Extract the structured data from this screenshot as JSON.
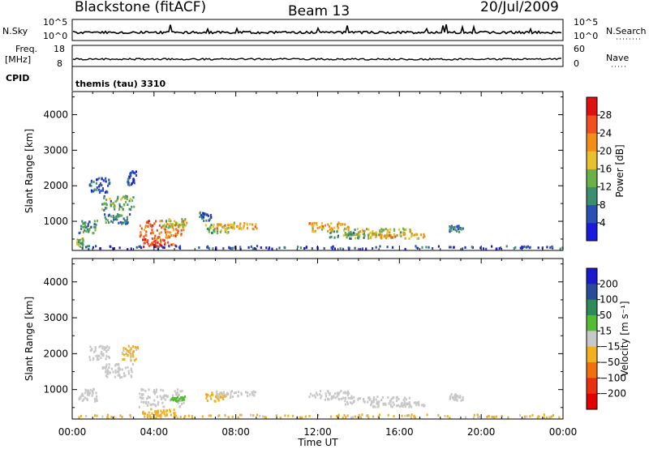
{
  "header": {
    "station": "Blackstone (fitACF)",
    "beam": "Beam 13",
    "date": "20/Jul/2009"
  },
  "top_panels": {
    "nsky_label": "N.Sky",
    "nsky_ticks": [
      "10^5",
      "10^0"
    ],
    "nsearch_label": "N.Search",
    "nsearch_ticks": [
      "10^5",
      "10^0"
    ],
    "freq_label": "Freq.",
    "freq_unit": "[MHz]",
    "freq_ticks": [
      "18",
      "8"
    ],
    "nave_label": "Nave",
    "nave_ticks": [
      "60",
      "0"
    ],
    "cpid_label": "CPID",
    "cpid_value": "themis (tau) 3310"
  },
  "colors": {
    "power_scale": [
      "#1a1adf",
      "#2a4fb5",
      "#3b8f70",
      "#6cb04a",
      "#e8c030",
      "#f09018",
      "#f05020",
      "#e01010"
    ],
    "velocity_scale": [
      "#1a1acc",
      "#2a4a9a",
      "#2f8a5a",
      "#55bb33",
      "#c8c8c8",
      "#f0b020",
      "#f07010",
      "#e83010",
      "#e00000"
    ]
  },
  "chart_data": [
    {
      "type": "heatmap",
      "name": "power",
      "ylabel": "Slant Range [km]",
      "xlabel": "",
      "yticks": [
        "1000",
        "2000",
        "3000",
        "4000"
      ],
      "yticks_values": [
        1000,
        2000,
        3000,
        4000
      ],
      "ylim": [
        180,
        4650
      ],
      "xticks": [
        "00:00",
        "04:00",
        "08:00",
        "12:00",
        "16:00",
        "20:00",
        "00:00"
      ],
      "xlim_hours": [
        0,
        24
      ],
      "colorbar_label": "Power [dB]",
      "colorbar_ticks": [
        "4",
        "8",
        "12",
        "16",
        "20",
        "24",
        "28"
      ],
      "colorbar_values": [
        4,
        8,
        12,
        16,
        20,
        24,
        28
      ],
      "colorbar_range": [
        0,
        32
      ],
      "regions": [
        {
          "t0": 0.2,
          "t1": 0.5,
          "r0": 250,
          "r1": 500,
          "v": 14
        },
        {
          "t0": 0.3,
          "t1": 1.2,
          "r0": 650,
          "r1": 1000,
          "v": 10
        },
        {
          "t0": 0.8,
          "t1": 1.8,
          "r0": 1800,
          "r1": 2200,
          "v": 6
        },
        {
          "t0": 1.4,
          "t1": 3.0,
          "r0": 1300,
          "r1": 1700,
          "v": 12
        },
        {
          "t0": 1.5,
          "t1": 2.8,
          "r0": 900,
          "r1": 1200,
          "v": 9
        },
        {
          "t0": 2.6,
          "t1": 3.1,
          "r0": 2000,
          "r1": 2400,
          "v": 5
        },
        {
          "t0": 3.2,
          "t1": 5.5,
          "r0": 500,
          "r1": 1000,
          "v": 24
        },
        {
          "t0": 3.4,
          "t1": 5.0,
          "r0": 250,
          "r1": 500,
          "v": 28
        },
        {
          "t0": 4.2,
          "t1": 5.6,
          "r0": 800,
          "r1": 1050,
          "v": 16
        },
        {
          "t0": 6.5,
          "t1": 7.6,
          "r0": 650,
          "r1": 900,
          "v": 14
        },
        {
          "t0": 7.0,
          "t1": 9.0,
          "r0": 760,
          "r1": 950,
          "v": 20
        },
        {
          "t0": 6.2,
          "t1": 6.8,
          "r0": 1000,
          "r1": 1250,
          "v": 8
        },
        {
          "t0": 11.5,
          "t1": 13.5,
          "r0": 700,
          "r1": 950,
          "v": 20
        },
        {
          "t0": 13.2,
          "t1": 16.5,
          "r0": 550,
          "r1": 800,
          "v": 16
        },
        {
          "t0": 12.5,
          "t1": 14.5,
          "r0": 500,
          "r1": 700,
          "v": 12
        },
        {
          "t0": 14.5,
          "t1": 17.2,
          "r0": 500,
          "r1": 650,
          "v": 20
        },
        {
          "t0": 18.4,
          "t1": 19.1,
          "r0": 680,
          "r1": 860,
          "v": 10
        },
        {
          "t0": 0.0,
          "t1": 24.0,
          "r0": 200,
          "r1": 290,
          "v": 5
        }
      ]
    },
    {
      "type": "heatmap",
      "name": "velocity",
      "ylabel": "Slant Range [km]",
      "xlabel": "Time UT",
      "yticks": [
        "1000",
        "2000",
        "3000",
        "4000"
      ],
      "yticks_values": [
        1000,
        2000,
        3000,
        4000
      ],
      "ylim": [
        180,
        4650
      ],
      "xticks": [
        "00:00",
        "04:00",
        "08:00",
        "12:00",
        "16:00",
        "20:00",
        "00:00"
      ],
      "xlim_hours": [
        0,
        24
      ],
      "colorbar_label": "Velocity [m s⁻¹]",
      "colorbar_ticks": [
        "-200",
        "-100",
        "-50",
        "-15",
        "15",
        "50",
        "100",
        "200"
      ],
      "colorbar_values": [
        -200,
        -100,
        -50,
        -15,
        15,
        50,
        100,
        200
      ],
      "colorbar_range": [
        -250,
        250
      ],
      "regions": [
        {
          "t0": 0.3,
          "t1": 1.2,
          "r0": 650,
          "r1": 1000,
          "v": 0
        },
        {
          "t0": 0.8,
          "t1": 1.8,
          "r0": 1800,
          "r1": 2200,
          "v": 0
        },
        {
          "t0": 1.4,
          "t1": 3.0,
          "r0": 1300,
          "r1": 1700,
          "v": 0
        },
        {
          "t0": 3.2,
          "t1": 5.5,
          "r0": 500,
          "r1": 1000,
          "v": 0
        },
        {
          "t0": 3.4,
          "t1": 5.0,
          "r0": 250,
          "r1": 450,
          "v": -60
        },
        {
          "t0": 4.8,
          "t1": 5.5,
          "r0": 650,
          "r1": 800,
          "v": 60
        },
        {
          "t0": 6.5,
          "t1": 7.6,
          "r0": 650,
          "r1": 900,
          "v": -60
        },
        {
          "t0": 7.0,
          "t1": 9.0,
          "r0": 760,
          "r1": 950,
          "v": 0
        },
        {
          "t0": 11.5,
          "t1": 13.5,
          "r0": 700,
          "r1": 950,
          "v": 0
        },
        {
          "t0": 13.2,
          "t1": 16.5,
          "r0": 550,
          "r1": 800,
          "v": 0
        },
        {
          "t0": 14.5,
          "t1": 17.2,
          "r0": 500,
          "r1": 650,
          "v": 0
        },
        {
          "t0": 18.4,
          "t1": 19.1,
          "r0": 680,
          "r1": 860,
          "v": 0
        },
        {
          "t0": 2.4,
          "t1": 3.2,
          "r0": 1800,
          "r1": 2200,
          "v": -40
        },
        {
          "t0": 0.0,
          "t1": 24.0,
          "r0": 200,
          "r1": 290,
          "v": -40
        }
      ]
    }
  ]
}
